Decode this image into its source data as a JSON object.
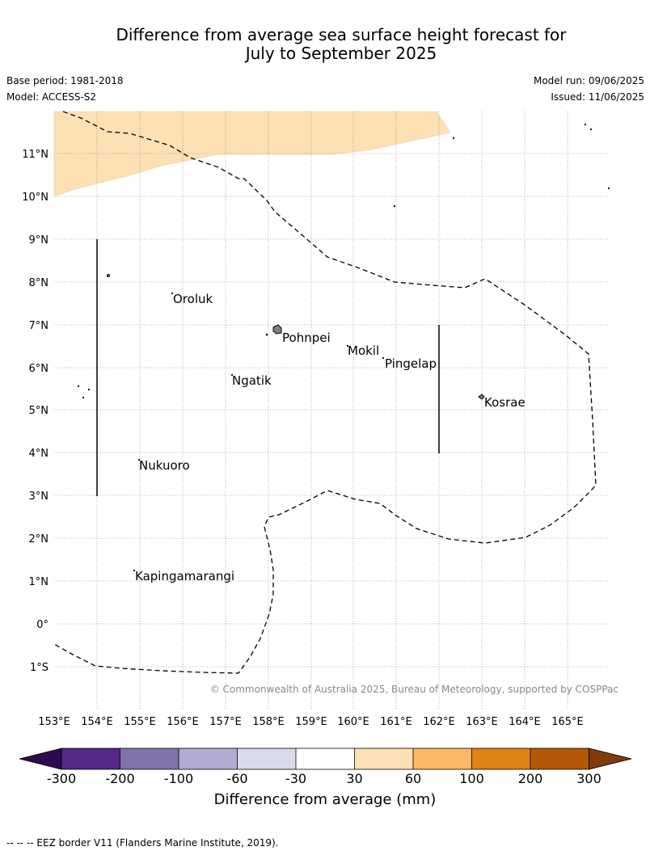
{
  "header": {
    "title_line1": "Difference from average sea surface height forecast for",
    "title_line2": "July to September 2025",
    "base_period": "Base period: 1981-2018",
    "model": "Model: ACCESS-S2",
    "model_run": "Model run: 09/06/2025",
    "issued": "Issued: 11/06/2025"
  },
  "map": {
    "lat_labels": [
      "11°N",
      "10°N",
      "9°N",
      "8°N",
      "7°N",
      "6°N",
      "5°N",
      "4°N",
      "3°N",
      "2°N",
      "1°N",
      "0°",
      "1°S"
    ],
    "lon_labels": [
      "153°E",
      "154°E",
      "155°E",
      "156°E",
      "157°E",
      "158°E",
      "159°E",
      "160°E",
      "161°E",
      "162°E",
      "163°E",
      "164°E",
      "165°E"
    ],
    "places": [
      {
        "name": "Oroluk"
      },
      {
        "name": "Pohnpei"
      },
      {
        "name": "Mokil"
      },
      {
        "name": "Pingelap"
      },
      {
        "name": "Ngatik"
      },
      {
        "name": "Kosrae"
      },
      {
        "name": "Nukuoro"
      },
      {
        "name": "Kapingamarangi"
      }
    ],
    "copyright": "© Commonwealth of Australia 2025, Bureau of Meteorology, supported by COSPPac",
    "fill_color": "#fde0b4"
  },
  "colorbar": {
    "label": "Difference from average (mm)",
    "ticks": [
      "-300",
      "-200",
      "-100",
      "-60",
      "-30",
      "30",
      "60",
      "100",
      "200",
      "300"
    ],
    "colors": [
      "#2d0b4e",
      "#542788",
      "#8073ac",
      "#b2abd2",
      "#d8daeb",
      "#ffffff",
      "#fee0b6",
      "#fdb863",
      "#e08214",
      "#b35806",
      "#7f3b08"
    ]
  },
  "footer": {
    "legend_text": "-- -- -- EEZ border V11 (Flanders Marine Institute, 2019)."
  }
}
